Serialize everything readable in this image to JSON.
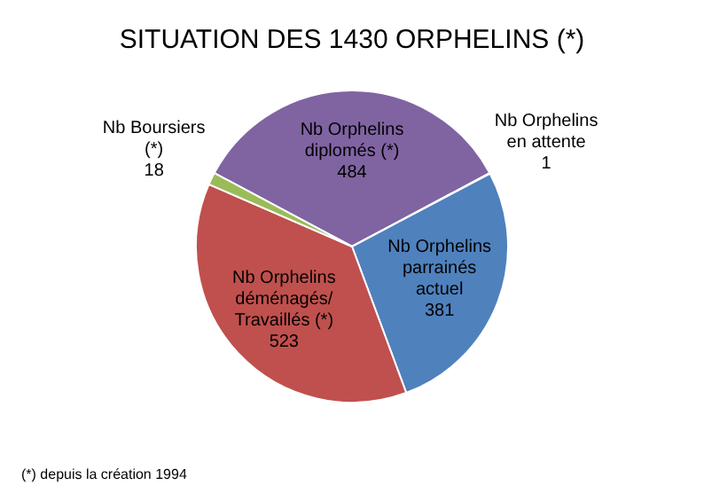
{
  "chart_data": {
    "type": "pie",
    "title": "SITUATION DES 1430 ORPHELINS (*)",
    "categories": [
      "Nb Orphelins diplomés (*)",
      "Nb Orphelins en attente",
      "Nb Orphelins parrainés actuel",
      "Nb Orphelins déménagés/ Travaillés (*)",
      "Nb Boursiers (*)"
    ],
    "values": [
      484,
      1,
      381,
      523,
      18
    ],
    "colors": [
      "#8064a2",
      "#4bacc6",
      "#4f81bd",
      "#c0504d",
      "#9bbb59"
    ],
    "data_labels": true,
    "annotations": [
      "(*) depuis la création  1994"
    ]
  }
}
